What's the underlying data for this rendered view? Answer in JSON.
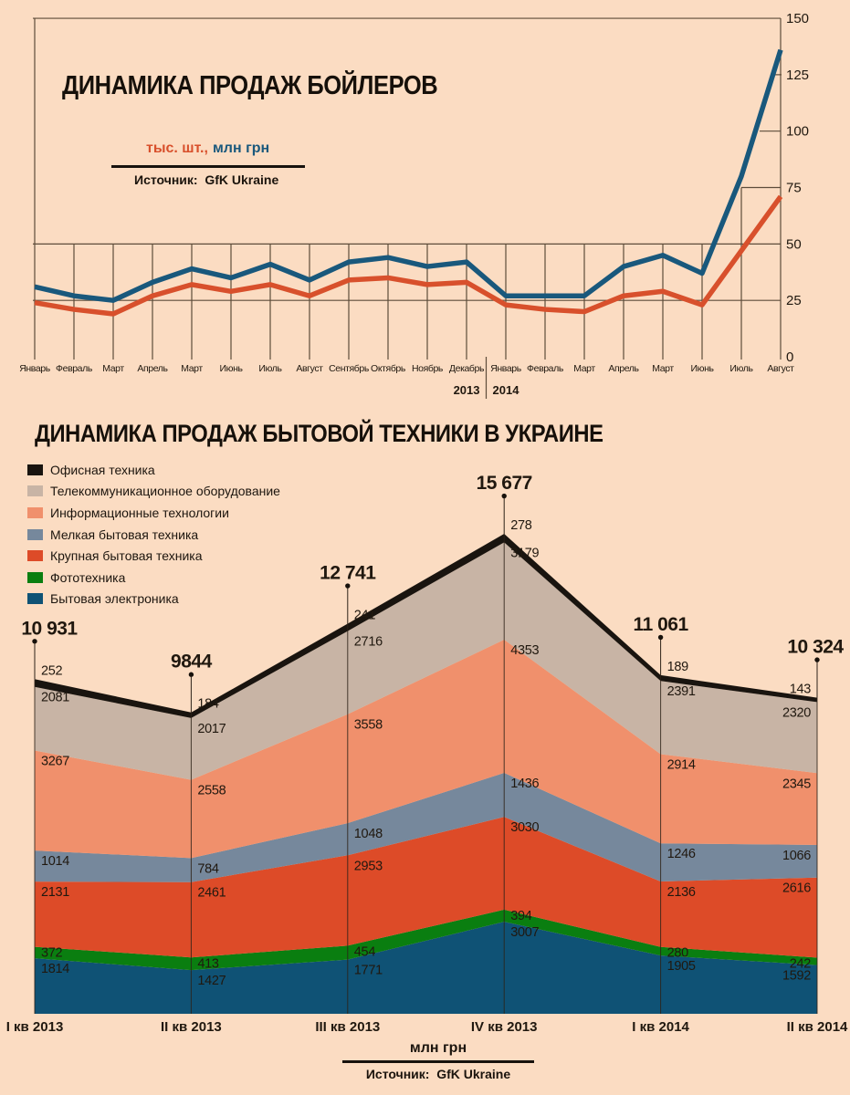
{
  "page": {
    "background": "#fbdcc2",
    "grid_color": "#5d4c3a",
    "text_color": "#1c150e"
  },
  "boiler_legend": {
    "red_label": "тыс. шт.,",
    "blue_label": "млн грн"
  },
  "chart_data": [
    {
      "id": "boiler-sales",
      "type": "line",
      "title": "ДИНАМИКА ПРОДАЖ БОЙЛЕРОВ",
      "source": "Источник:  GfK Ukraine",
      "x": [
        "Январь",
        "Февраль",
        "Март",
        "Апрель",
        "Март",
        "Июнь",
        "Июль",
        "Август",
        "Сентябрь",
        "Октябрь",
        "Ноябрь",
        "Декабрь",
        "Январь",
        "Февраль",
        "Март",
        "Апрель",
        "Март",
        "Июнь",
        "Июль",
        "Август"
      ],
      "year_labels": [
        "2013",
        "2014"
      ],
      "year_split_after_index": 11,
      "ylim": [
        0,
        150
      ],
      "yticks": [
        0,
        25,
        50,
        75,
        100,
        125,
        150
      ],
      "legend_position": "top-left",
      "grid": "partial",
      "series": [
        {
          "name": "тыс. шт.",
          "color": "#d8502c",
          "values": [
            24,
            21,
            19,
            27,
            32,
            29,
            32,
            27,
            34,
            35,
            32,
            33,
            23,
            21,
            20,
            27,
            29,
            23,
            47,
            71
          ]
        },
        {
          "name": "млн грн",
          "color": "#19587c",
          "values": [
            31,
            27,
            25,
            33,
            39,
            35,
            41,
            34,
            42,
            44,
            40,
            42,
            27,
            27,
            27,
            40,
            45,
            37,
            80,
            136
          ]
        }
      ]
    },
    {
      "id": "appliance-sales",
      "type": "area",
      "title": "ДИНАМИКА ПРОДАЖ БЫТОВОЙ ТЕХНИКИ В УКРАИНЕ",
      "unit": "млн грн",
      "source": "Источник:  GfK Ukraine",
      "categories": [
        "I кв 2013",
        "II кв 2013",
        "III кв 2013",
        "IV кв 2013",
        "I кв 2014",
        "II кв 2014"
      ],
      "totals": [
        10931,
        9844,
        12741,
        15677,
        11061,
        10324
      ],
      "totals_text": [
        "10 931",
        "9844",
        "12 741",
        "15 677",
        "11 061",
        "10 324"
      ],
      "legend_position": "top-left",
      "series": [
        {
          "name": "Офисная техника",
          "color": "#19140f",
          "values": [
            252,
            184,
            241,
            278,
            189,
            143
          ]
        },
        {
          "name": "Телекоммуникационное оборудование",
          "color": "#c8b4a5",
          "values": [
            2081,
            2017,
            2716,
            3179,
            2391,
            2320
          ]
        },
        {
          "name": "Информационные технологии",
          "color": "#f0906c",
          "values": [
            3267,
            2558,
            3558,
            4353,
            2914,
            2345
          ]
        },
        {
          "name": "Мелкая бытовая техника",
          "color": "#76889c",
          "values": [
            1014,
            784,
            1048,
            1436,
            1246,
            1066
          ]
        },
        {
          "name": "Крупная бытовая техника",
          "color": "#dd4b28",
          "values": [
            2131,
            2461,
            2953,
            3030,
            2136,
            2616
          ]
        },
        {
          "name": "Фототехника",
          "color": "#0a7e10",
          "values": [
            372,
            413,
            454,
            394,
            280,
            242
          ],
          "label_color": "#ffffff"
        },
        {
          "name": "Бытовая электроника",
          "color": "#0f5275",
          "values": [
            1814,
            1427,
            1771,
            3007,
            1905,
            1592
          ],
          "label_color": "#ffffff"
        }
      ]
    }
  ]
}
